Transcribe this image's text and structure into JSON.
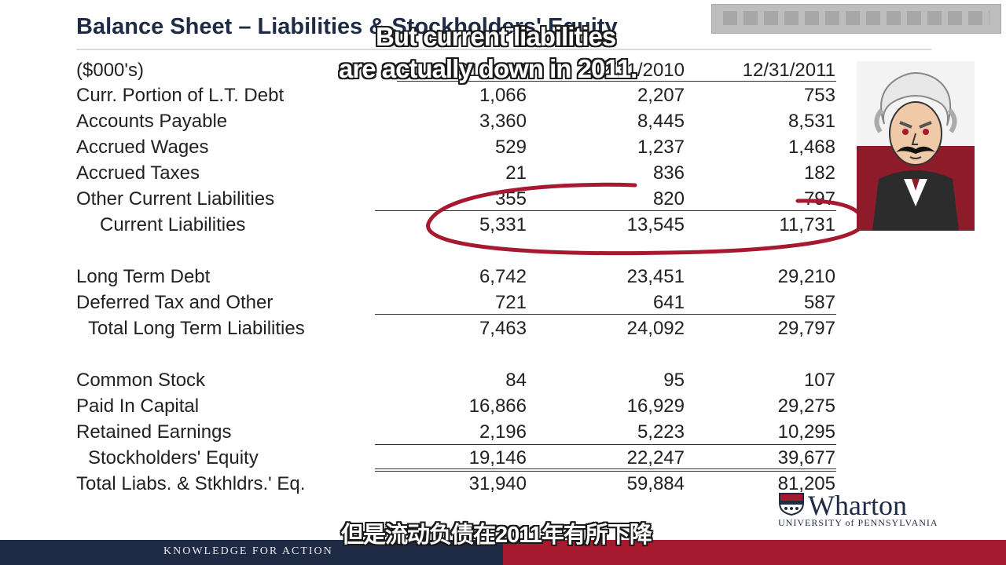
{
  "slide": {
    "title": "Balance Sheet – Liabilities & Stockholders' Equity",
    "units_label": "($000's)",
    "columns": [
      "12/31/2009",
      "12/31/2010",
      "12/31/2011"
    ]
  },
  "table": {
    "rows": [
      {
        "label": "Curr. Portion of   L.T. Debt",
        "values": [
          "1,066",
          "2,207",
          "753"
        ]
      },
      {
        "label": "Accounts Payable",
        "values": [
          "3,360",
          "8,445",
          "8,531"
        ]
      },
      {
        "label": "Accrued Wages",
        "values": [
          "529",
          "1,237",
          "1,468"
        ]
      },
      {
        "label": "Accrued Taxes",
        "values": [
          "21",
          "836",
          "182"
        ]
      },
      {
        "label": "Other Current Liabilities",
        "values": [
          "355",
          "820",
          "797"
        ]
      },
      {
        "label": "Current Liabilities",
        "values": [
          "5,331",
          "13,545",
          "11,731"
        ]
      },
      {
        "label": "Long Term Debt",
        "values": [
          "6,742",
          "23,451",
          "29,210"
        ]
      },
      {
        "label": "Deferred Tax and Other",
        "values": [
          "721",
          "641",
          "587"
        ]
      },
      {
        "label": "Total Long Term Liabilities",
        "values": [
          "7,463",
          "24,092",
          "29,797"
        ]
      },
      {
        "label": "Common Stock",
        "values": [
          "84",
          "95",
          "107"
        ]
      },
      {
        "label": "Paid In Capital",
        "values": [
          "16,866",
          "16,929",
          "29,275"
        ]
      },
      {
        "label": "Retained Earnings",
        "values": [
          "2,196",
          "5,223",
          "10,295"
        ]
      },
      {
        "label": "Stockholders' Equity",
        "values": [
          "19,146",
          "22,247",
          "39,677"
        ]
      },
      {
        "label": "Total Liabs. & Stkhldrs.' Eq.",
        "values": [
          "31,940",
          "59,884",
          "81,205"
        ]
      }
    ]
  },
  "captions": {
    "en_line1": "But current liabilities",
    "en_line2": "are actually down in 2011.",
    "zh": "但是流动负债在2011年有所下降"
  },
  "branding": {
    "name": "Wharton",
    "university": "UNIVERSITY of PENNSYLVANIA",
    "footer": "KNOWLEDGE FOR ACTION"
  },
  "colors": {
    "navy": "#1f2a44",
    "red": "#a6192e",
    "ellipse": "#a6192e"
  }
}
